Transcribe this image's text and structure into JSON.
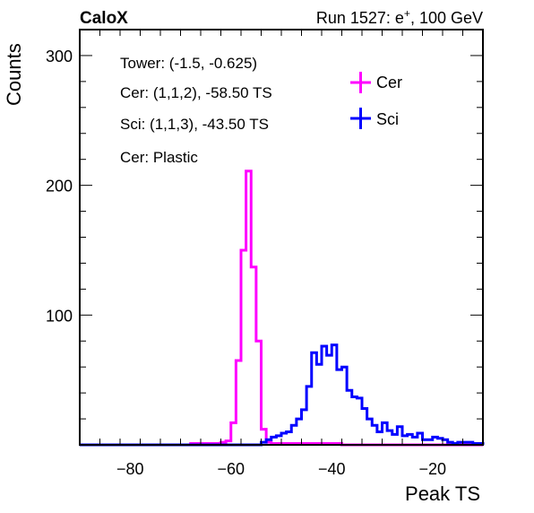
{
  "header": {
    "left_label": "CaloX",
    "right_label_prefix": "Run 1527: e",
    "right_label_sup": "+",
    "right_label_suffix": ", 100 GeV"
  },
  "annotations": [
    "Tower: (-1.5, -0.625)",
    "Cer: (1,1,2), -58.50 TS",
    "Sci: (1,1,3), -43.50 TS",
    "Cer: Plastic"
  ],
  "colors": {
    "cer": "#ff00ff",
    "sci": "#0000ff",
    "axis": "#000000"
  },
  "chart_data": {
    "type": "histogram",
    "xlabel": "Peak TS",
    "ylabel": "Counts",
    "xlim": [
      -90,
      -10
    ],
    "ylim": [
      0,
      320
    ],
    "x_ticks": [
      -80,
      -60,
      -40,
      -20
    ],
    "y_ticks": [
      100,
      200,
      300
    ],
    "bin_width": 1,
    "legend": {
      "placement": "top-right-inside"
    },
    "series": [
      {
        "name": "Cer",
        "color": "#ff00ff",
        "x_start": -90,
        "counts": [
          0,
          0,
          0,
          0,
          0,
          0,
          0,
          0,
          0,
          0,
          0,
          0,
          0,
          0,
          0,
          0,
          0,
          0,
          0,
          0,
          0,
          0,
          1,
          1,
          1,
          1,
          1,
          1,
          2,
          3,
          17,
          65,
          150,
          211,
          137,
          80,
          12,
          2,
          1,
          1,
          1,
          1,
          1,
          1,
          1,
          1,
          1,
          1,
          1,
          1,
          1,
          1,
          0,
          0,
          0,
          0,
          0,
          0,
          0,
          0,
          0,
          0,
          0,
          0,
          0,
          0,
          0,
          0,
          0,
          0,
          0,
          0,
          0,
          0,
          0,
          0,
          0,
          0,
          0,
          0
        ]
      },
      {
        "name": "Sci",
        "color": "#0000ff",
        "x_start": -90,
        "counts": [
          0,
          0,
          0,
          0,
          0,
          0,
          0,
          0,
          0,
          0,
          0,
          0,
          0,
          0,
          0,
          0,
          0,
          0,
          0,
          0,
          0,
          0,
          0,
          0,
          0,
          0,
          0,
          0,
          0,
          0,
          0,
          0,
          0,
          0,
          0,
          0,
          2,
          4,
          6,
          7,
          9,
          10,
          15,
          20,
          27,
          45,
          71,
          62,
          76,
          69,
          77,
          58,
          60,
          42,
          37,
          36,
          28,
          20,
          15,
          10,
          17,
          11,
          8,
          14,
          7,
          8,
          6,
          9,
          4,
          4,
          6,
          5,
          4,
          2,
          1,
          2,
          2,
          2,
          1,
          1
        ]
      }
    ]
  }
}
